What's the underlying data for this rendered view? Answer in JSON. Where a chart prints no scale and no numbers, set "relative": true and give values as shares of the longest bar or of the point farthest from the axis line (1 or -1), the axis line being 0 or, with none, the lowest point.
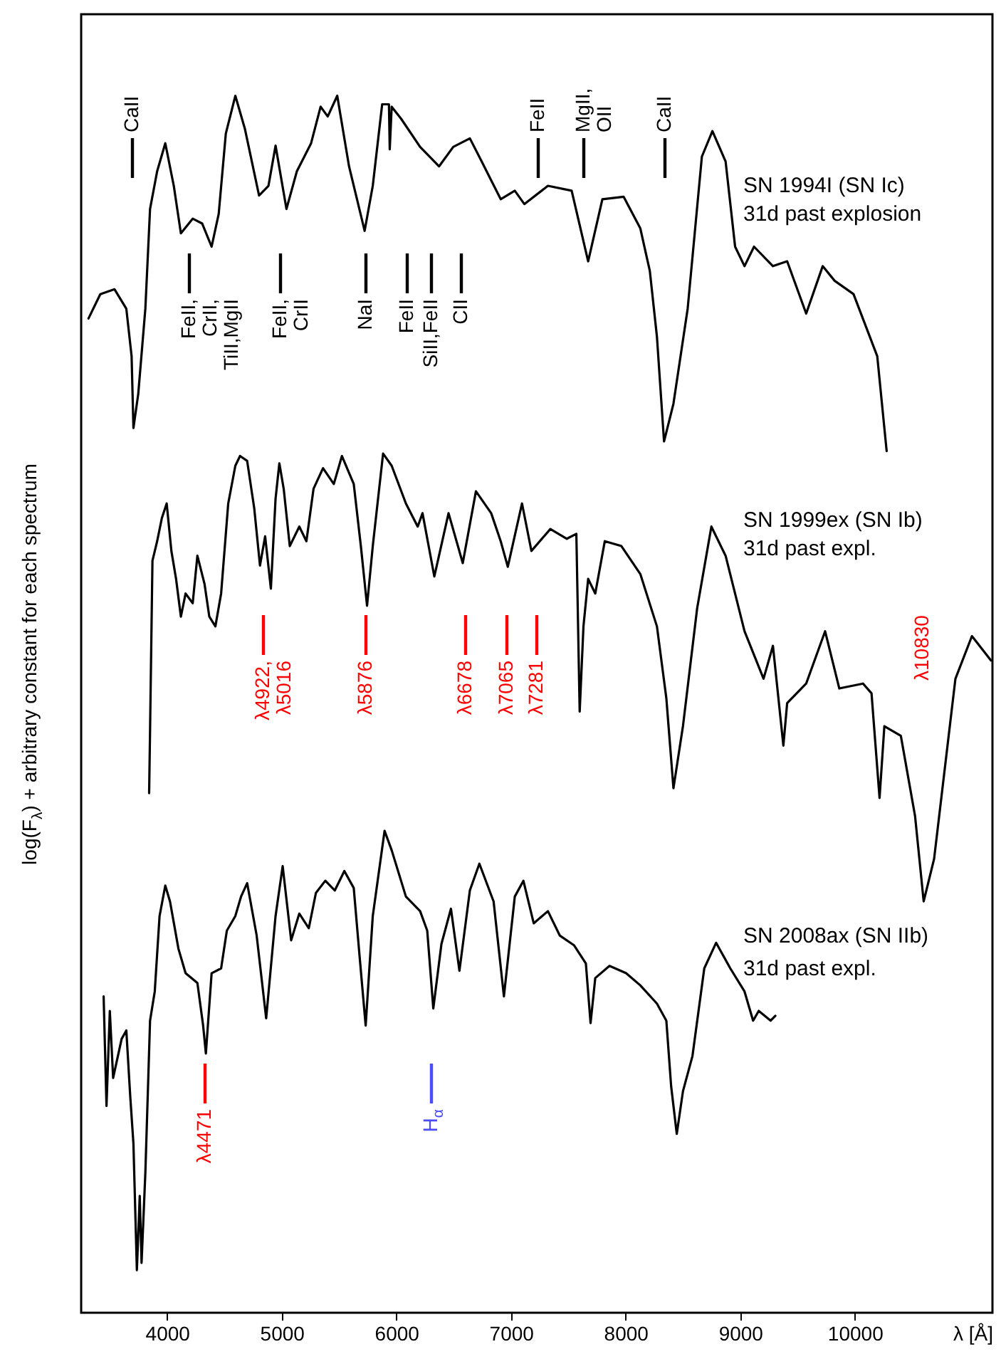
{
  "chart_data": {
    "type": "line",
    "relative": true,
    "xlabel": "λ [Å]",
    "ylabel": "log(F$_{λ}$) + arbitrary constant for each spectrum",
    "xlim": [
      3250,
      11200
    ],
    "xticks": [
      4000,
      5000,
      6000,
      7000,
      8000,
      9000,
      10000
    ],
    "series": [
      {
        "color": "#000000",
        "x": [
          3314,
          3417,
          3541,
          3644,
          3690,
          3706,
          3748,
          3810,
          3851,
          3913,
          3984,
          4058,
          4120,
          4223,
          4306,
          4388,
          4450,
          4512,
          4595,
          4678,
          4802,
          4884,
          4946,
          5041,
          5132,
          5256,
          5339,
          5401,
          5484,
          5587,
          5723,
          5794,
          5876,
          5935,
          5942,
          5959,
          6042,
          6207,
          6372,
          6496,
          6641,
          6744,
          6910,
          7033,
          7116,
          7322,
          7529,
          7673,
          7797,
          7983,
          8128,
          8211,
          8273,
          8335,
          8417,
          8541,
          8665,
          8757,
          8872,
          8955,
          9037,
          9120,
          9285,
          9409,
          9575,
          9719,
          9823,
          9988,
          10195,
          10277
        ],
        "values": [
          0.817,
          0.837,
          0.841,
          0.825,
          0.786,
          0.727,
          0.755,
          0.825,
          0.907,
          0.938,
          0.961,
          0.926,
          0.887,
          0.899,
          0.895,
          0.876,
          0.903,
          0.969,
          1.0,
          0.973,
          0.918,
          0.926,
          0.959,
          0.907,
          0.938,
          0.961,
          0.991,
          0.983,
          1.0,
          0.942,
          0.889,
          0.926,
          0.993,
          0.993,
          0.956,
          0.991,
          0.981,
          0.958,
          0.942,
          0.958,
          0.965,
          0.946,
          0.915,
          0.922,
          0.911,
          0.926,
          0.922,
          0.864,
          0.915,
          0.917,
          0.891,
          0.856,
          0.802,
          0.716,
          0.747,
          0.825,
          0.95,
          0.971,
          0.946,
          0.876,
          0.86,
          0.876,
          0.86,
          0.864,
          0.821,
          0.86,
          0.848,
          0.837,
          0.786,
          0.708
        ]
      },
      {
        "color": "#000000",
        "x": [
          3843,
          3851,
          3872,
          3913,
          3954,
          3996,
          4037,
          4078,
          4120,
          4161,
          4223,
          4264,
          4326,
          4368,
          4421,
          4471,
          4533,
          4595,
          4636,
          4698,
          4760,
          4810,
          4855,
          4905,
          4946,
          4979,
          5017,
          5070,
          5153,
          5215,
          5277,
          5360,
          5454,
          5525,
          5628,
          5690,
          5744,
          5794,
          5884,
          5959,
          6083,
          6186,
          6228,
          6331,
          6455,
          6579,
          6694,
          6827,
          6910,
          6972,
          7096,
          7178,
          7343,
          7487,
          7570,
          7599,
          7632,
          7673,
          7735,
          7818,
          7963,
          8128,
          8273,
          8355,
          8417,
          8500,
          8624,
          8748,
          8872,
          9037,
          9203,
          9285,
          9376,
          9409,
          9575,
          9740,
          9864,
          10071,
          10145,
          10215,
          10257,
          10401,
          10525,
          10600,
          10691,
          10794,
          10877,
          11021,
          11187
        ],
        "values": [
          0.427,
          0.478,
          0.618,
          0.634,
          0.653,
          0.665,
          0.626,
          0.603,
          0.572,
          0.591,
          0.583,
          0.622,
          0.599,
          0.572,
          0.564,
          0.591,
          0.665,
          0.696,
          0.704,
          0.7,
          0.661,
          0.614,
          0.638,
          0.595,
          0.669,
          0.698,
          0.677,
          0.63,
          0.646,
          0.634,
          0.677,
          0.694,
          0.681,
          0.704,
          0.681,
          0.63,
          0.581,
          0.63,
          0.706,
          0.696,
          0.665,
          0.646,
          0.657,
          0.605,
          0.657,
          0.616,
          0.675,
          0.657,
          0.634,
          0.613,
          0.665,
          0.626,
          0.644,
          0.636,
          0.64,
          0.494,
          0.564,
          0.603,
          0.591,
          0.634,
          0.63,
          0.607,
          0.564,
          0.505,
          0.431,
          0.482,
          0.579,
          0.646,
          0.622,
          0.56,
          0.521,
          0.548,
          0.466,
          0.501,
          0.517,
          0.56,
          0.513,
          0.517,
          0.509,
          0.423,
          0.482,
          0.474,
          0.408,
          0.338,
          0.373,
          0.455,
          0.521,
          0.556,
          0.536
        ]
      },
      {
        "color": "#000000",
        "x": [
          3446,
          3471,
          3500,
          3529,
          3603,
          3644,
          3678,
          3706,
          3736,
          3761,
          3777,
          3810,
          3851,
          3892,
          3934,
          3984,
          4025,
          4099,
          4161,
          4264,
          4314,
          4338,
          4388,
          4471,
          4521,
          4595,
          4645,
          4698,
          4781,
          4864,
          4946,
          5008,
          5082,
          5153,
          5236,
          5298,
          5380,
          5463,
          5546,
          5628,
          5677,
          5732,
          5794,
          5897,
          5959,
          6083,
          6207,
          6269,
          6322,
          6393,
          6476,
          6550,
          6641,
          6724,
          6848,
          6938,
          7033,
          7108,
          7198,
          7322,
          7425,
          7549,
          7653,
          7694,
          7735,
          7859,
          8004,
          8128,
          8273,
          8355,
          8397,
          8446,
          8500,
          8583,
          8686,
          8789,
          8913,
          9037,
          9112,
          9161,
          9265,
          9306
        ],
        "values": [
          0.26,
          0.17,
          0.248,
          0.193,
          0.225,
          0.232,
          0.178,
          0.139,
          0.035,
          0.096,
          0.041,
          0.115,
          0.24,
          0.264,
          0.326,
          0.351,
          0.338,
          0.299,
          0.279,
          0.271,
          0.236,
          0.213,
          0.279,
          0.283,
          0.314,
          0.326,
          0.342,
          0.353,
          0.31,
          0.242,
          0.326,
          0.367,
          0.306,
          0.328,
          0.316,
          0.345,
          0.355,
          0.347,
          0.363,
          0.349,
          0.295,
          0.236,
          0.326,
          0.396,
          0.38,
          0.342,
          0.33,
          0.314,
          0.25,
          0.303,
          0.332,
          0.281,
          0.347,
          0.369,
          0.338,
          0.26,
          0.342,
          0.355,
          0.32,
          0.33,
          0.31,
          0.302,
          0.287,
          0.238,
          0.275,
          0.285,
          0.279,
          0.269,
          0.254,
          0.24,
          0.186,
          0.147,
          0.182,
          0.211,
          0.283,
          0.304,
          0.283,
          0.264,
          0.24,
          0.248,
          0.24,
          0.244
        ]
      }
    ],
    "annotations": [
      "CaII",
      "FeII",
      "MgII,\nOII",
      "CaII",
      "FeII,\nCrII,\nTiII,MgII",
      "FeII,\nCrII",
      "NaI",
      "FeII",
      "SiII,FeII",
      "CII",
      "λ4922,\nλ5016",
      "λ5876",
      "λ6678",
      "λ7065",
      "λ7281",
      "λ10830",
      "λ4471",
      "H$_{α}$",
      "SN 1994I (SN Ic)",
      "31d past explosion",
      "SN 1999ex (SN Ib)",
      "31d past expl.",
      "SN 2008ax (SN IIb)",
      "31d past expl."
    ]
  }
}
